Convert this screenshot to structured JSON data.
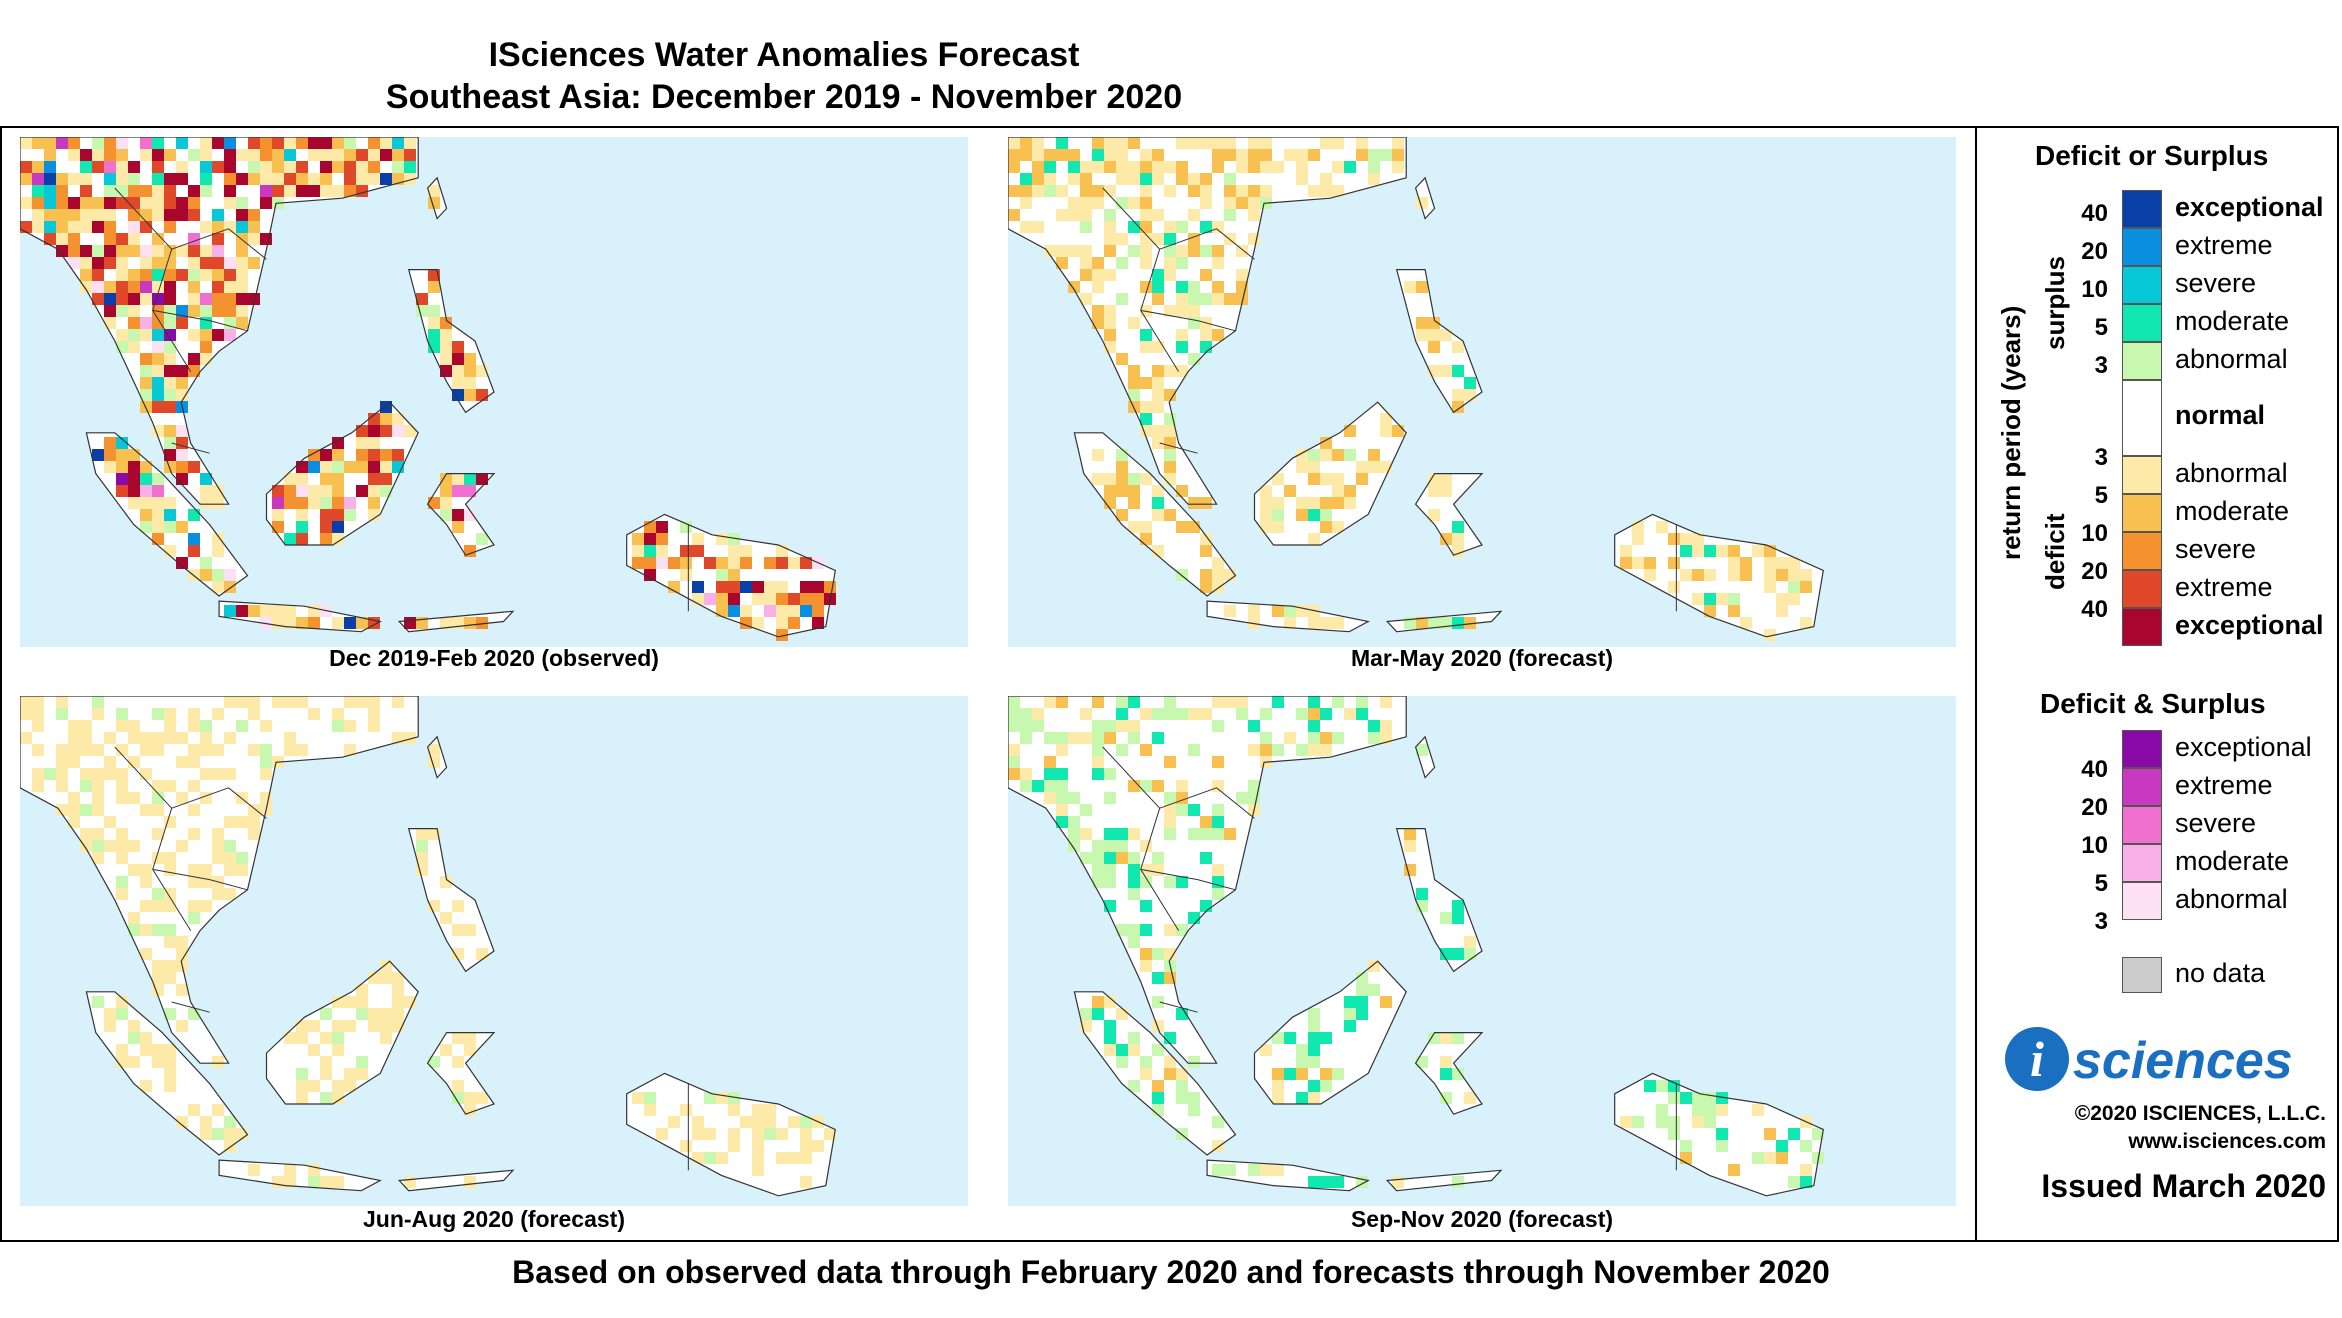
{
  "title": "ISciences Water Anomalies Forecast",
  "subtitle": "Southeast Asia: December 2019 - November 2020",
  "footer": "Based on observed data through February 2020 and forecasts through November 2020",
  "panels": [
    {
      "caption": "Dec 2019-Feb 2020 (observed)",
      "dominant": "deficit",
      "intensity": "exceptional"
    },
    {
      "caption": "Mar-May 2020 (forecast)",
      "dominant": "deficit",
      "intensity": "moderate"
    },
    {
      "caption": "Jun-Aug 2020 (forecast)",
      "dominant": "deficit",
      "intensity": "abnormal"
    },
    {
      "caption": "Sep-Nov 2020 (forecast)",
      "dominant": "surplus",
      "intensity": "moderate"
    }
  ],
  "legend": {
    "deficit_surplus": {
      "title": "Deficit or Surplus",
      "axis_label": "return period (years)",
      "surplus_label": "surplus",
      "deficit_label": "deficit",
      "surplus": [
        {
          "label": "exceptional",
          "color": "#0a3fa8"
        },
        {
          "label": "extreme",
          "color": "#0a8ee0"
        },
        {
          "label": "severe",
          "color": "#08c8d8"
        },
        {
          "label": "moderate",
          "color": "#10e8b0"
        },
        {
          "label": "abnormal",
          "color": "#c8f8b0"
        }
      ],
      "surplus_ticks": [
        "40",
        "20",
        "10",
        "5",
        "3"
      ],
      "normal": {
        "label": "normal",
        "color": "#ffffff"
      },
      "deficit": [
        {
          "label": "abnormal",
          "color": "#fde9a8"
        },
        {
          "label": "moderate",
          "color": "#f8c050"
        },
        {
          "label": "severe",
          "color": "#f59230"
        },
        {
          "label": "extreme",
          "color": "#e0482a"
        },
        {
          "label": "exceptional",
          "color": "#a8062e"
        }
      ],
      "deficit_ticks": [
        "3",
        "5",
        "10",
        "20",
        "40"
      ]
    },
    "both": {
      "title": "Deficit & Surplus",
      "items": [
        {
          "label": "exceptional",
          "color": "#8a0aa8"
        },
        {
          "label": "extreme",
          "color": "#c838c0"
        },
        {
          "label": "severe",
          "color": "#f070d0"
        },
        {
          "label": "moderate",
          "color": "#f8b0e8"
        },
        {
          "label": "abnormal",
          "color": "#fde0f4"
        }
      ],
      "ticks": [
        "40",
        "20",
        "10",
        "5",
        "3"
      ]
    },
    "no_data": {
      "label": "no data",
      "color": "#cccccc"
    }
  },
  "brand": {
    "logo_text": "sciences",
    "copyright": "©2020 ISCIENCES, L.L.C.",
    "website": "www.isciences.com",
    "issued": "Issued March 2020"
  }
}
